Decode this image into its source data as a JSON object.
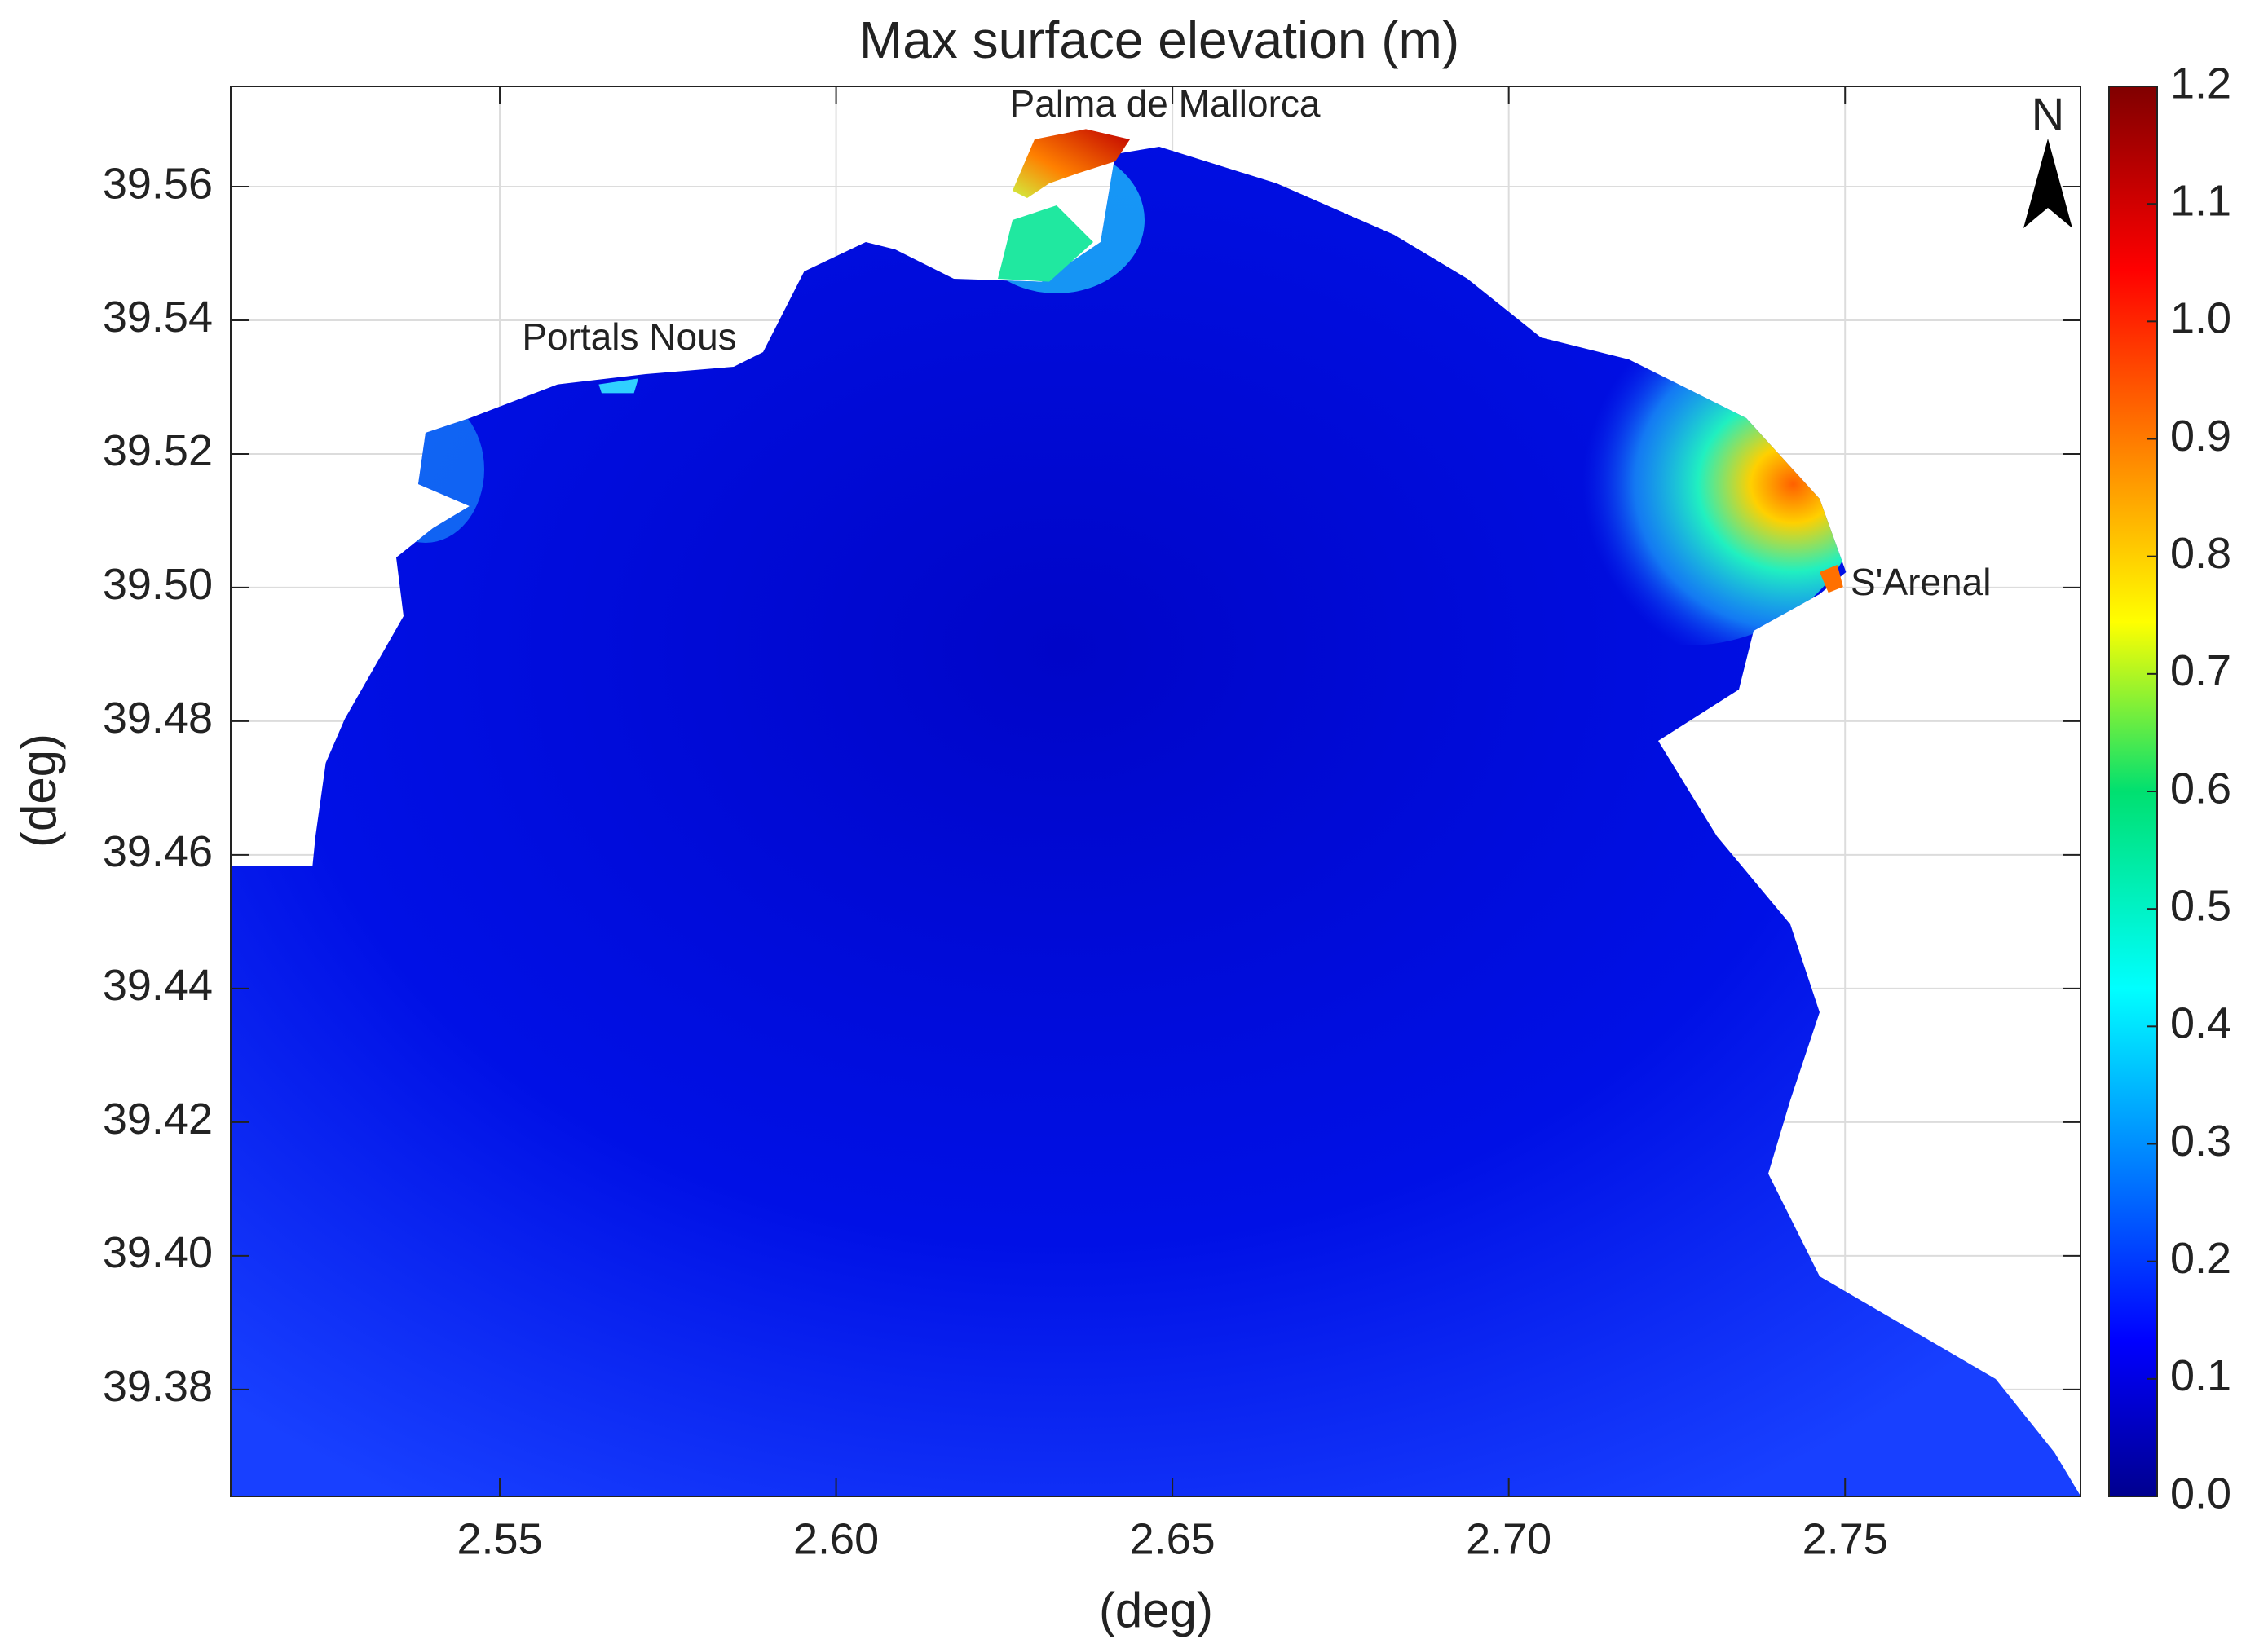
{
  "chart_data": {
    "type": "map",
    "title": "Max surface elevation (m)",
    "xlabel": "(deg)",
    "ylabel": "(deg)",
    "xlim": [
      2.51,
      2.785
    ],
    "xticks": [
      2.55,
      {
        "value": 2.6,
        "label": "2.60"
      },
      2.65,
      {
        "value": 2.7,
        "label": "2.70"
      },
      2.75
    ],
    "ylim": [
      39.364,
      39.575
    ],
    "yticks": [
      39.38,
      {
        "value": 39.4,
        "label": "39.40"
      },
      39.42,
      39.44,
      39.46,
      39.48,
      {
        "value": 39.5,
        "label": "39.50"
      },
      39.52,
      39.54,
      39.56
    ],
    "grid": true,
    "colorbar": {
      "lim": [
        0,
        1.2
      ],
      "colormap": "jet",
      "ticks": [
        {
          "value": 0,
          "label": "0.0"
        },
        0.1,
        0.2,
        0.3,
        0.4,
        0.5,
        0.6,
        0.7,
        0.8,
        0.9,
        {
          "value": 1,
          "label": "1.0"
        },
        1.1,
        1.2
      ]
    },
    "annotations": [
      "Palma de Mallorca",
      "Portals Nous",
      "S'Arenal",
      "N"
    ]
  }
}
